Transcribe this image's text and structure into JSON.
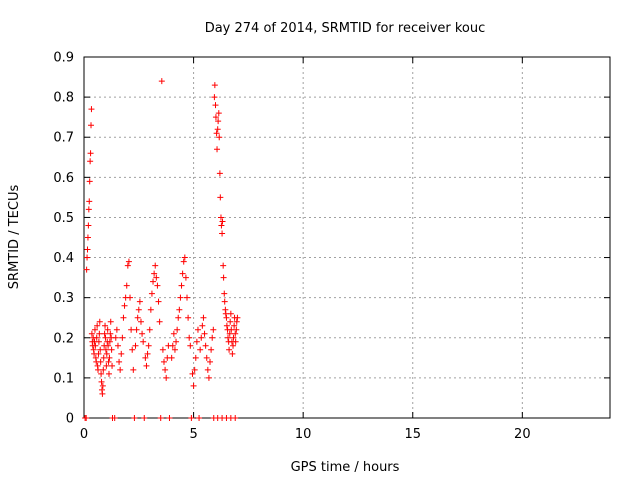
{
  "chart_data": {
    "type": "scatter",
    "title": "Day 274 of 2014, SRMTID for receiver kouc",
    "xlabel": "GPS time / hours",
    "ylabel": "SRMTID / TECUs",
    "xlim": [
      0,
      24
    ],
    "ylim": [
      0,
      0.9
    ],
    "x_ticks": [
      0,
      5,
      10,
      15,
      20
    ],
    "y_ticks": [
      0,
      0.1,
      0.2,
      0.3,
      0.4,
      0.5,
      0.6,
      0.7,
      0.8,
      0.9
    ],
    "x_tick_labels": [
      "0",
      "5",
      "10",
      "15",
      "20"
    ],
    "y_tick_labels": [
      "0",
      "0.1",
      "0.2",
      "0.3",
      "0.4",
      "0.5",
      "0.6",
      "0.7",
      "0.8",
      "0.9"
    ],
    "grid": true,
    "legend": "none",
    "marker": "plus",
    "color": "#ff0000",
    "series": [
      {
        "points": [
          [
            0.05,
            0
          ],
          [
            0.1,
            0
          ],
          [
            0.12,
            0.37
          ],
          [
            0.14,
            0.4
          ],
          [
            0.16,
            0.42
          ],
          [
            0.18,
            0.45
          ],
          [
            0.2,
            0.48
          ],
          [
            0.22,
            0.52
          ],
          [
            0.24,
            0.54
          ],
          [
            0.26,
            0.59
          ],
          [
            0.28,
            0.64
          ],
          [
            0.3,
            0.66
          ],
          [
            0.32,
            0.73
          ],
          [
            0.34,
            0.77
          ],
          [
            0.36,
            0.21
          ],
          [
            0.38,
            0.19
          ],
          [
            0.4,
            0.18
          ],
          [
            0.42,
            0.2
          ],
          [
            0.44,
            0.17
          ],
          [
            0.46,
            0.16
          ],
          [
            0.48,
            0.19
          ],
          [
            0.5,
            0.22
          ],
          [
            0.52,
            0.18
          ],
          [
            0.54,
            0.15
          ],
          [
            0.56,
            0.14
          ],
          [
            0.58,
            0.2
          ],
          [
            0.6,
            0.23
          ],
          [
            0.62,
            0.13
          ],
          [
            0.64,
            0.12
          ],
          [
            0.66,
            0.16
          ],
          [
            0.68,
            0.19
          ],
          [
            0.7,
            0.21
          ],
          [
            0.72,
            0.24
          ],
          [
            0.74,
            0.17
          ],
          [
            0.76,
            0.14
          ],
          [
            0.78,
            0.11
          ],
          [
            0.8,
            0.09
          ],
          [
            0.82,
            0.07
          ],
          [
            0.84,
            0.06
          ],
          [
            0.86,
            0.08
          ],
          [
            0.88,
            0.12
          ],
          [
            0.9,
            0.15
          ],
          [
            0.92,
            0.18
          ],
          [
            0.94,
            0.21
          ],
          [
            0.96,
            0.23
          ],
          [
            0.98,
            0.2
          ],
          [
            1.0,
            0.17
          ],
          [
            1.02,
            0.13
          ],
          [
            1.04,
            0.16
          ],
          [
            1.06,
            0.19
          ],
          [
            1.08,
            0.22
          ],
          [
            1.1,
            0.18
          ],
          [
            1.12,
            0.14
          ],
          [
            1.14,
            0.11
          ],
          [
            1.16,
            0.15
          ],
          [
            1.18,
            0.19
          ],
          [
            1.2,
            0.21
          ],
          [
            1.22,
            0.24
          ],
          [
            1.24,
            0.2
          ],
          [
            1.26,
            0.17
          ],
          [
            1.28,
            0.13
          ],
          [
            1.3,
            0
          ],
          [
            1.4,
            0
          ],
          [
            1.45,
            0.2
          ],
          [
            1.5,
            0.22
          ],
          [
            1.55,
            0.18
          ],
          [
            1.6,
            0.14
          ],
          [
            1.65,
            0.12
          ],
          [
            1.7,
            0.16
          ],
          [
            1.75,
            0.2
          ],
          [
            1.8,
            0.25
          ],
          [
            1.85,
            0.28
          ],
          [
            1.9,
            0.3
          ],
          [
            1.95,
            0.33
          ],
          [
            2.0,
            0.38
          ],
          [
            2.05,
            0.39
          ],
          [
            2.1,
            0.3
          ],
          [
            2.15,
            0.22
          ],
          [
            2.2,
            0.17
          ],
          [
            2.25,
            0.12
          ],
          [
            2.3,
            0.0
          ],
          [
            2.35,
            0.18
          ],
          [
            2.4,
            0.22
          ],
          [
            2.45,
            0.25
          ],
          [
            2.5,
            0.27
          ],
          [
            2.55,
            0.29
          ],
          [
            2.6,
            0.24
          ],
          [
            2.65,
            0.21
          ],
          [
            2.7,
            0.19
          ],
          [
            2.75,
            0.0
          ],
          [
            2.8,
            0.15
          ],
          [
            2.85,
            0.13
          ],
          [
            2.9,
            0.16
          ],
          [
            2.95,
            0.18
          ],
          [
            3.0,
            0.22
          ],
          [
            3.05,
            0.27
          ],
          [
            3.1,
            0.31
          ],
          [
            3.15,
            0.34
          ],
          [
            3.2,
            0.36
          ],
          [
            3.25,
            0.38
          ],
          [
            3.3,
            0.35
          ],
          [
            3.35,
            0.33
          ],
          [
            3.4,
            0.29
          ],
          [
            3.45,
            0.24
          ],
          [
            3.5,
            0.0
          ],
          [
            3.55,
            0.84
          ],
          [
            3.6,
            0.17
          ],
          [
            3.65,
            0.14
          ],
          [
            3.7,
            0.12
          ],
          [
            3.75,
            0.1
          ],
          [
            3.8,
            0.15
          ],
          [
            3.85,
            0.18
          ],
          [
            3.9,
            0.0
          ],
          [
            4.0,
            0.15
          ],
          [
            4.05,
            0.18
          ],
          [
            4.1,
            0.21
          ],
          [
            4.15,
            0.17
          ],
          [
            4.2,
            0.19
          ],
          [
            4.25,
            0.22
          ],
          [
            4.3,
            0.25
          ],
          [
            4.35,
            0.27
          ],
          [
            4.4,
            0.3
          ],
          [
            4.45,
            0.33
          ],
          [
            4.5,
            0.36
          ],
          [
            4.55,
            0.39
          ],
          [
            4.6,
            0.4
          ],
          [
            4.65,
            0.35
          ],
          [
            4.7,
            0.3
          ],
          [
            4.75,
            0.25
          ],
          [
            4.8,
            0.2
          ],
          [
            4.85,
            0.18
          ],
          [
            4.9,
            0.0
          ],
          [
            4.95,
            0.11
          ],
          [
            5.0,
            0.08
          ],
          [
            5.05,
            0.12
          ],
          [
            5.1,
            0.15
          ],
          [
            5.15,
            0.19
          ],
          [
            5.2,
            0.22
          ],
          [
            5.25,
            0.0
          ],
          [
            5.3,
            0.17
          ],
          [
            5.35,
            0.2
          ],
          [
            5.4,
            0.23
          ],
          [
            5.45,
            0.25
          ],
          [
            5.5,
            0.21
          ],
          [
            5.55,
            0.18
          ],
          [
            5.6,
            0.15
          ],
          [
            5.65,
            0.12
          ],
          [
            5.7,
            0.1
          ],
          [
            5.75,
            0.14
          ],
          [
            5.8,
            0.17
          ],
          [
            5.85,
            0.2
          ],
          [
            5.9,
            0.22
          ],
          [
            5.92,
            0.0
          ],
          [
            5.95,
            0.8
          ],
          [
            5.97,
            0.83
          ],
          [
            6.0,
            0.78
          ],
          [
            6.02,
            0.75
          ],
          [
            6.05,
            0.71
          ],
          [
            6.07,
            0.67
          ],
          [
            6.1,
            0.72
          ],
          [
            6.12,
            0.74
          ],
          [
            6.15,
            0.76
          ],
          [
            6.17,
            0.7
          ],
          [
            6.2,
            0.61
          ],
          [
            6.22,
            0.55
          ],
          [
            6.25,
            0.5
          ],
          [
            6.27,
            0.48
          ],
          [
            6.3,
            0.46
          ],
          [
            6.32,
            0.49
          ],
          [
            6.35,
            0.38
          ],
          [
            6.37,
            0.35
          ],
          [
            6.4,
            0.31
          ],
          [
            6.42,
            0.29
          ],
          [
            6.45,
            0.27
          ],
          [
            6.47,
            0.26
          ],
          [
            6.5,
            0.25
          ],
          [
            6.52,
            0.23
          ],
          [
            6.55,
            0.22
          ],
          [
            6.57,
            0.2
          ],
          [
            6.6,
            0.19
          ],
          [
            6.62,
            0.17
          ],
          [
            6.65,
            0.21
          ],
          [
            6.67,
            0.24
          ],
          [
            6.7,
            0.26
          ],
          [
            6.72,
            0.22
          ],
          [
            6.75,
            0.19
          ],
          [
            6.77,
            0.16
          ],
          [
            6.8,
            0.18
          ],
          [
            6.82,
            0.2
          ],
          [
            6.85,
            0.23
          ],
          [
            6.87,
            0.25
          ],
          [
            6.9,
            0.21
          ],
          [
            6.92,
            0.19
          ],
          [
            6.95,
            0.22
          ],
          [
            6.97,
            0.24
          ],
          [
            7.0,
            0.25
          ],
          [
            6.1,
            0.0
          ],
          [
            6.3,
            0.0
          ],
          [
            6.5,
            0.0
          ],
          [
            6.7,
            0.0
          ],
          [
            6.9,
            0.0
          ]
        ]
      }
    ]
  }
}
